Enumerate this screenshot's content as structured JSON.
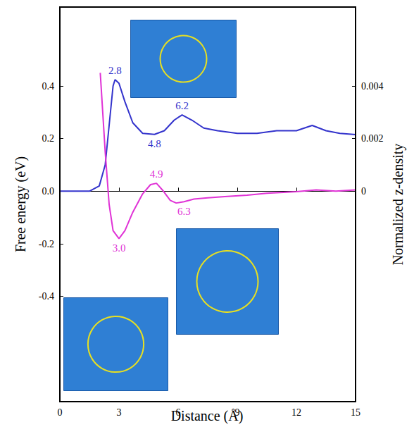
{
  "chart_data": {
    "type": "line",
    "xlabel": "Distance (Å)",
    "ylabel": "Free energy (eV)",
    "y2label": "Normalized z-density",
    "xlim": [
      0,
      15
    ],
    "xticks": [
      0,
      3,
      6,
      9,
      12,
      15
    ],
    "ylim": [
      -0.8,
      0.7
    ],
    "yticks": [
      -0.4,
      -0.2,
      {
        "value": 0,
        "label": "0.0"
      },
      0.2,
      0.4
    ],
    "y2lim": [
      -0.008,
      0.007
    ],
    "y2ticks": [
      0,
      0.002,
      0.004
    ],
    "grid": false,
    "series": [
      {
        "color": "#3333cc",
        "axis": "y2",
        "x": [
          0,
          1.5,
          2.0,
          2.3,
          2.5,
          2.7,
          2.8,
          3.0,
          3.3,
          3.7,
          4.2,
          4.8,
          5.3,
          5.8,
          6.2,
          6.7,
          7.3,
          8,
          9,
          10,
          11,
          12,
          12.8,
          13.5,
          14.2,
          15
        ],
        "values": [
          0,
          0,
          0.0002,
          0.001,
          0.0025,
          0.004,
          0.00424,
          0.0041,
          0.0034,
          0.0026,
          0.0022,
          0.00216,
          0.0023,
          0.0027,
          0.0029,
          0.0027,
          0.0024,
          0.0023,
          0.0022,
          0.0022,
          0.0023,
          0.0023,
          0.0025,
          0.0023,
          0.0022,
          0.00215
        ],
        "annotations": [
          {
            "x": 2.8,
            "label": "2.8"
          },
          {
            "x": 4.8,
            "label": "4.8"
          },
          {
            "x": 6.2,
            "label": "6.2"
          }
        ]
      },
      {
        "color": "#e033d6",
        "x": [
          2.05,
          2.3,
          2.5,
          2.7,
          3.0,
          3.3,
          3.7,
          4.2,
          4.6,
          4.9,
          5.2,
          5.6,
          5.9,
          6.3,
          6.8,
          7.5,
          8.5,
          9.5,
          10.5,
          12,
          13,
          14,
          15
        ],
        "values": [
          0.45,
          0.15,
          -0.05,
          -0.15,
          -0.18,
          -0.15,
          -0.08,
          -0.01,
          0.025,
          0.03,
          0.005,
          -0.035,
          -0.045,
          -0.04,
          -0.03,
          -0.025,
          -0.02,
          -0.015,
          -0.008,
          -0.002,
          0.005,
          0,
          0.005
        ],
        "annotations": [
          {
            "x": 3.0,
            "label": "3.0"
          },
          {
            "x": 4.9,
            "label": "4.9"
          },
          {
            "x": 6.3,
            "label": "6.3"
          }
        ]
      }
    ]
  }
}
